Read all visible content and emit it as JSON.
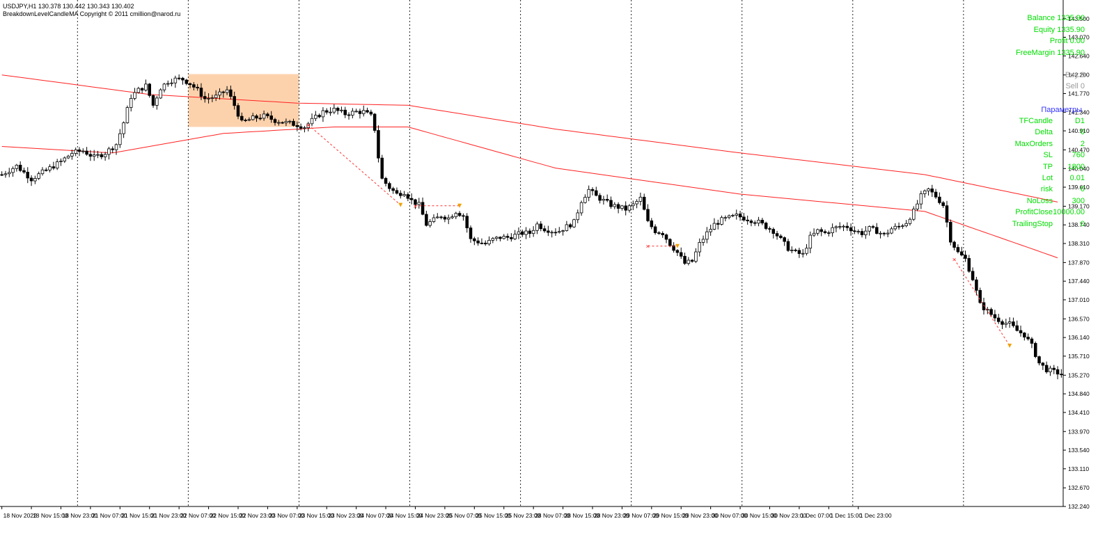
{
  "header": {
    "symbol_line": "USDJPY,H1  130.378 130.442 130.343 130.402",
    "indicator_line": "BreakdownLevelCandleMA   Copyright © 2011 cmillion@narod.ru"
  },
  "colors": {
    "background": "#ffffff",
    "grid": "#000000",
    "ma_line": "#ff2020",
    "box": "#fcd2ad",
    "bull_candle": "#ffffff",
    "bear_candle": "#000000",
    "panel_green": "#00dd00",
    "panel_gray": "#9a9a9a",
    "panel_blue": "#3333ff",
    "trade_line": "#ff3030"
  },
  "account": {
    "balance": "Balance 1335.90",
    "equity": "Equity 1335.90",
    "profit": "Profit 0.00",
    "free_margin": "FreeMargin 1335.90"
  },
  "orders": {
    "buy": "Buy 0",
    "sell": "Sell 0"
  },
  "params": {
    "title": "Параметры",
    "rows": [
      {
        "name": "TFCandle",
        "value": "D1"
      },
      {
        "name": "Delta",
        "value": "0"
      },
      {
        "name": "MaxOrders",
        "value": "2"
      },
      {
        "name": "SL",
        "value": "760"
      },
      {
        "name": "TP",
        "value": "1800"
      },
      {
        "name": "Lot",
        "value": "0.01"
      },
      {
        "name": "risk",
        "value": "0"
      },
      {
        "name": "NoLoss",
        "value": "300"
      },
      {
        "name": "ProfitClose",
        "value": "10000.00"
      },
      {
        "name": "TrailingStop",
        "value": "0"
      }
    ]
  },
  "chart_data": {
    "type": "candlestick",
    "symbol": "USDJPY",
    "timeframe": "H1",
    "ylim": [
      132.24,
      143.93
    ],
    "y_ticks": [
      "143.500",
      "143.070",
      "142.640",
      "142.200",
      "141.770",
      "141.340",
      "140.910",
      "140.470",
      "140.040",
      "139.610",
      "139.170",
      "138.740",
      "138.310",
      "137.870",
      "137.440",
      "137.010",
      "136.570",
      "136.140",
      "135.710",
      "135.270",
      "134.840",
      "134.410",
      "133.970",
      "133.540",
      "133.110",
      "132.670",
      "132.240"
    ],
    "x_ticks": [
      "18 Nov 2022",
      "18 Nov 15:00",
      "18 Nov 23:00",
      "21 Nov 07:00",
      "21 Nov 15:00",
      "21 Nov 23:00",
      "22 Nov 07:00",
      "22 Nov 15:00",
      "22 Nov 23:00",
      "23 Nov 07:00",
      "23 Nov 15:00",
      "23 Nov 23:00",
      "24 Nov 07:00",
      "24 Nov 15:00",
      "24 Nov 23:00",
      "25 Nov 07:00",
      "25 Nov 15:00",
      "25 Nov 23:00",
      "28 Nov 07:00",
      "28 Nov 15:00",
      "28 Nov 23:00",
      "29 Nov 07:00",
      "29 Nov 15:00",
      "29 Nov 23:00",
      "30 Nov 07:00",
      "30 Nov 15:00",
      "30 Nov 23:00",
      "1 Dec 07:00",
      "1 Dec 15:00",
      "1 Dec 23:00"
    ],
    "day_separator_bars": [
      21,
      51,
      81,
      111,
      141,
      171,
      201,
      231,
      261
    ],
    "close_points": [
      [
        0,
        139.9
      ],
      [
        4,
        140.1
      ],
      [
        8,
        139.8
      ],
      [
        12,
        140.0
      ],
      [
        16,
        140.2
      ],
      [
        19,
        140.4
      ],
      [
        22,
        140.45
      ],
      [
        25,
        140.3
      ],
      [
        28,
        140.4
      ],
      [
        31,
        140.6
      ],
      [
        33,
        141.1
      ],
      [
        35,
        141.7
      ],
      [
        37,
        141.85
      ],
      [
        39,
        141.95
      ],
      [
        41,
        141.5
      ],
      [
        43,
        141.9
      ],
      [
        45,
        142.05
      ],
      [
        47,
        142.1
      ],
      [
        49,
        142.1
      ],
      [
        51,
        142.0
      ],
      [
        53,
        141.85
      ],
      [
        55,
        141.65
      ],
      [
        58,
        141.7
      ],
      [
        61,
        141.85
      ],
      [
        63,
        141.5
      ],
      [
        65,
        141.1
      ],
      [
        68,
        141.2
      ],
      [
        71,
        141.25
      ],
      [
        74,
        141.15
      ],
      [
        77,
        141.1
      ],
      [
        80,
        141.05
      ],
      [
        82,
        141.0
      ],
      [
        84,
        141.15
      ],
      [
        87,
        141.35
      ],
      [
        90,
        141.4
      ],
      [
        93,
        141.3
      ],
      [
        96,
        141.35
      ],
      [
        98,
        141.35
      ],
      [
        100,
        141.25
      ],
      [
        101,
        140.95
      ],
      [
        102,
        140.3
      ],
      [
        103,
        139.8
      ],
      [
        105,
        139.6
      ],
      [
        107,
        139.45
      ],
      [
        109,
        139.5
      ],
      [
        111,
        139.3
      ],
      [
        113,
        139.2
      ],
      [
        115,
        138.75
      ],
      [
        117,
        138.85
      ],
      [
        119,
        138.95
      ],
      [
        121,
        138.9
      ],
      [
        123,
        139.05
      ],
      [
        125,
        138.95
      ],
      [
        127,
        138.4
      ],
      [
        129,
        138.35
      ],
      [
        131,
        138.3
      ],
      [
        133,
        138.4
      ],
      [
        135,
        138.45
      ],
      [
        137,
        138.45
      ],
      [
        139,
        138.5
      ],
      [
        141,
        138.55
      ],
      [
        143,
        138.55
      ],
      [
        145,
        138.75
      ],
      [
        147,
        138.65
      ],
      [
        149,
        138.6
      ],
      [
        151,
        138.6
      ],
      [
        153,
        138.7
      ],
      [
        155,
        138.8
      ],
      [
        157,
        139.3
      ],
      [
        159,
        139.55
      ],
      [
        161,
        139.4
      ],
      [
        163,
        139.3
      ],
      [
        165,
        139.2
      ],
      [
        167,
        139.15
      ],
      [
        169,
        139.1
      ],
      [
        171,
        139.2
      ],
      [
        173,
        139.35
      ],
      [
        175,
        138.8
      ],
      [
        177,
        138.6
      ],
      [
        179,
        138.55
      ],
      [
        181,
        138.3
      ],
      [
        183,
        138.1
      ],
      [
        185,
        137.85
      ],
      [
        187,
        137.9
      ],
      [
        189,
        138.3
      ],
      [
        191,
        138.55
      ],
      [
        193,
        138.75
      ],
      [
        195,
        138.85
      ],
      [
        197,
        138.9
      ],
      [
        199,
        138.95
      ],
      [
        201,
        138.9
      ],
      [
        203,
        138.85
      ],
      [
        205,
        138.8
      ],
      [
        207,
        138.7
      ],
      [
        209,
        138.6
      ],
      [
        211,
        138.4
      ],
      [
        213,
        138.2
      ],
      [
        215,
        138.1
      ],
      [
        217,
        138.05
      ],
      [
        219,
        138.45
      ],
      [
        221,
        138.6
      ],
      [
        223,
        138.55
      ],
      [
        225,
        138.65
      ],
      [
        227,
        138.7
      ],
      [
        229,
        138.7
      ],
      [
        231,
        138.6
      ],
      [
        233,
        138.55
      ],
      [
        235,
        138.65
      ],
      [
        237,
        138.6
      ],
      [
        239,
        138.5
      ],
      [
        241,
        138.65
      ],
      [
        243,
        138.7
      ],
      [
        245,
        138.8
      ],
      [
        247,
        139.05
      ],
      [
        249,
        139.4
      ],
      [
        251,
        139.55
      ],
      [
        253,
        139.4
      ],
      [
        255,
        139.2
      ],
      [
        257,
        138.4
      ],
      [
        259,
        138.1
      ],
      [
        261,
        137.95
      ],
      [
        263,
        137.5
      ],
      [
        265,
        136.9
      ],
      [
        267,
        136.75
      ],
      [
        269,
        136.6
      ],
      [
        271,
        136.5
      ],
      [
        273,
        136.45
      ],
      [
        275,
        136.3
      ],
      [
        277,
        136.2
      ],
      [
        279,
        135.95
      ],
      [
        281,
        135.55
      ],
      [
        283,
        135.4
      ],
      [
        285,
        135.35
      ],
      [
        287,
        135.3
      ]
    ],
    "ma_upper": [
      [
        0,
        142.2
      ],
      [
        40,
        141.75
      ],
      [
        80,
        141.55
      ],
      [
        110,
        141.5
      ],
      [
        150,
        140.95
      ],
      [
        200,
        140.4
      ],
      [
        250,
        139.9
      ],
      [
        287,
        139.25
      ]
    ],
    "ma_lower": [
      [
        0,
        140.55
      ],
      [
        30,
        140.4
      ],
      [
        60,
        140.85
      ],
      [
        90,
        141.0
      ],
      [
        110,
        141.0
      ],
      [
        150,
        140.05
      ],
      [
        200,
        139.45
      ],
      [
        250,
        139.05
      ],
      [
        287,
        137.95
      ]
    ],
    "box": {
      "bar_from": 51,
      "bar_to": 80,
      "high": 142.22,
      "low": 141.0
    },
    "trades": [
      {
        "from": [
          83,
          141.05
        ],
        "to": [
          108,
          139.2
        ],
        "style": "diagonal"
      },
      {
        "from": [
          112,
          139.18
        ],
        "to": [
          124,
          139.18
        ],
        "style": "flat"
      },
      {
        "from": [
          175,
          138.25
        ],
        "to": [
          183,
          138.25
        ],
        "style": "flat"
      },
      {
        "from": [
          258,
          137.95
        ],
        "to": [
          273,
          135.95
        ],
        "style": "diagonal"
      }
    ]
  }
}
